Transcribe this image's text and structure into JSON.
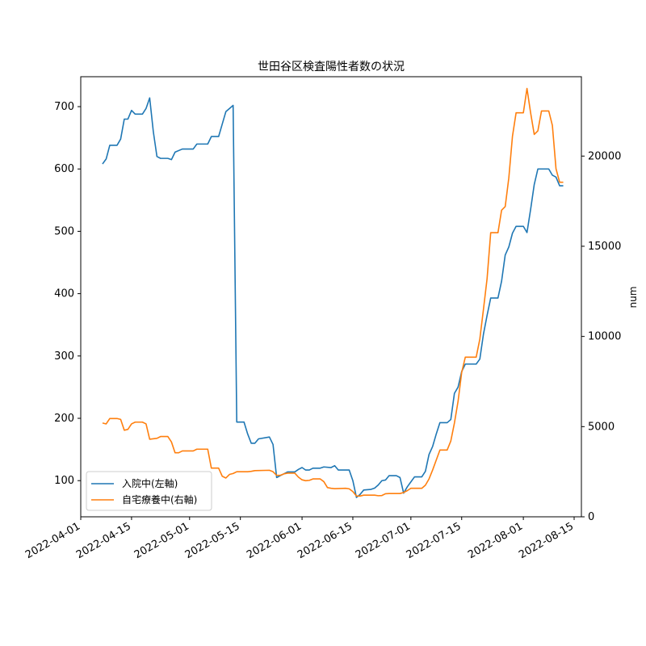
{
  "chart_data": {
    "type": "line",
    "title": "世田谷区検査陽性者数の状況",
    "xlabel": "",
    "ylabel_left": "",
    "ylabel_right": "num",
    "xlim": [
      "2022-04-01",
      "2022-08-17"
    ],
    "ylim_left": [
      42,
      748
    ],
    "ylim_right": [
      0,
      24400
    ],
    "xticks": [
      "2022-04-01",
      "2022-04-15",
      "2022-05-01",
      "2022-05-15",
      "2022-06-01",
      "2022-06-15",
      "2022-07-01",
      "2022-07-15",
      "2022-08-01",
      "2022-08-15"
    ],
    "yticks_left": [
      100,
      200,
      300,
      400,
      500,
      600,
      700
    ],
    "yticks_right": [
      0,
      5000,
      10000,
      15000,
      20000
    ],
    "legend_position": "lower-left",
    "grid": false,
    "series": [
      {
        "name": "入院中(左軸)",
        "axis": "left",
        "color": "#1f77b4",
        "points": [
          [
            "2022-04-07",
            608
          ],
          [
            "2022-04-08",
            616
          ],
          [
            "2022-04-09",
            638
          ],
          [
            "2022-04-11",
            638
          ],
          [
            "2022-04-12",
            648
          ],
          [
            "2022-04-13",
            680
          ],
          [
            "2022-04-14",
            680
          ],
          [
            "2022-04-15",
            694
          ],
          [
            "2022-04-16",
            688
          ],
          [
            "2022-04-18",
            688
          ],
          [
            "2022-04-19",
            697
          ],
          [
            "2022-04-20",
            714
          ],
          [
            "2022-04-21",
            660
          ],
          [
            "2022-04-22",
            620
          ],
          [
            "2022-04-23",
            617
          ],
          [
            "2022-04-25",
            617
          ],
          [
            "2022-04-26",
            615
          ],
          [
            "2022-04-27",
            627
          ],
          [
            "2022-04-29",
            632
          ],
          [
            "2022-05-02",
            632
          ],
          [
            "2022-05-03",
            640
          ],
          [
            "2022-05-06",
            640
          ],
          [
            "2022-05-07",
            652
          ],
          [
            "2022-05-09",
            652
          ],
          [
            "2022-05-10",
            672
          ],
          [
            "2022-05-11",
            692
          ],
          [
            "2022-05-12",
            697
          ],
          [
            "2022-05-13",
            702
          ],
          [
            "2022-05-14",
            194
          ],
          [
            "2022-05-16",
            194
          ],
          [
            "2022-05-17",
            175
          ],
          [
            "2022-05-18",
            160
          ],
          [
            "2022-05-19",
            160
          ],
          [
            "2022-05-20",
            167
          ],
          [
            "2022-05-23",
            170
          ],
          [
            "2022-05-24",
            158
          ],
          [
            "2022-05-25",
            105
          ],
          [
            "2022-05-26",
            108
          ],
          [
            "2022-05-28",
            114
          ],
          [
            "2022-05-30",
            114
          ],
          [
            "2022-05-31",
            118
          ],
          [
            "2022-06-01",
            121
          ],
          [
            "2022-06-02",
            117
          ],
          [
            "2022-06-03",
            117
          ],
          [
            "2022-06-04",
            120
          ],
          [
            "2022-06-06",
            120
          ],
          [
            "2022-06-07",
            122
          ],
          [
            "2022-06-09",
            121
          ],
          [
            "2022-06-10",
            124
          ],
          [
            "2022-06-11",
            117
          ],
          [
            "2022-06-14",
            117
          ],
          [
            "2022-06-15",
            100
          ],
          [
            "2022-06-16",
            73
          ],
          [
            "2022-06-17",
            78
          ],
          [
            "2022-06-18",
            85
          ],
          [
            "2022-06-20",
            86
          ],
          [
            "2022-06-21",
            88
          ],
          [
            "2022-06-22",
            93
          ],
          [
            "2022-06-23",
            100
          ],
          [
            "2022-06-24",
            101
          ],
          [
            "2022-06-25",
            108
          ],
          [
            "2022-06-27",
            108
          ],
          [
            "2022-06-28",
            105
          ],
          [
            "2022-06-29",
            80
          ],
          [
            "2022-06-30",
            90
          ],
          [
            "2022-07-01",
            98
          ],
          [
            "2022-07-02",
            106
          ],
          [
            "2022-07-04",
            106
          ],
          [
            "2022-07-05",
            115
          ],
          [
            "2022-07-06",
            142
          ],
          [
            "2022-07-07",
            155
          ],
          [
            "2022-07-08",
            175
          ],
          [
            "2022-07-09",
            193
          ],
          [
            "2022-07-11",
            193
          ],
          [
            "2022-07-12",
            198
          ],
          [
            "2022-07-13",
            240
          ],
          [
            "2022-07-14",
            250
          ],
          [
            "2022-07-15",
            275
          ],
          [
            "2022-07-16",
            287
          ],
          [
            "2022-07-19",
            287
          ],
          [
            "2022-07-20",
            295
          ],
          [
            "2022-07-21",
            335
          ],
          [
            "2022-07-22",
            365
          ],
          [
            "2022-07-23",
            393
          ],
          [
            "2022-07-25",
            393
          ],
          [
            "2022-07-26",
            420
          ],
          [
            "2022-07-27",
            462
          ],
          [
            "2022-07-28",
            475
          ],
          [
            "2022-07-29",
            497
          ],
          [
            "2022-07-30",
            508
          ],
          [
            "2022-08-01",
            508
          ],
          [
            "2022-08-02",
            498
          ],
          [
            "2022-08-03",
            535
          ],
          [
            "2022-08-04",
            575
          ],
          [
            "2022-08-05",
            600
          ],
          [
            "2022-08-08",
            600
          ],
          [
            "2022-08-09",
            590
          ],
          [
            "2022-08-10",
            587
          ],
          [
            "2022-08-11",
            573
          ],
          [
            "2022-08-12",
            573
          ]
        ]
      },
      {
        "name": "自宅療養中(右軸)",
        "axis": "right",
        "color": "#ff7f0e",
        "points": [
          [
            "2022-04-07",
            5200
          ],
          [
            "2022-04-08",
            5150
          ],
          [
            "2022-04-09",
            5450
          ],
          [
            "2022-04-11",
            5450
          ],
          [
            "2022-04-12",
            5400
          ],
          [
            "2022-04-13",
            4800
          ],
          [
            "2022-04-14",
            4850
          ],
          [
            "2022-04-15",
            5150
          ],
          [
            "2022-04-16",
            5250
          ],
          [
            "2022-04-18",
            5250
          ],
          [
            "2022-04-19",
            5150
          ],
          [
            "2022-04-20",
            4300
          ],
          [
            "2022-04-22",
            4350
          ],
          [
            "2022-04-23",
            4450
          ],
          [
            "2022-04-25",
            4450
          ],
          [
            "2022-04-26",
            4150
          ],
          [
            "2022-04-27",
            3550
          ],
          [
            "2022-04-28",
            3550
          ],
          [
            "2022-04-29",
            3650
          ],
          [
            "2022-05-02",
            3650
          ],
          [
            "2022-05-03",
            3750
          ],
          [
            "2022-05-06",
            3750
          ],
          [
            "2022-05-07",
            2700
          ],
          [
            "2022-05-09",
            2700
          ],
          [
            "2022-05-10",
            2250
          ],
          [
            "2022-05-11",
            2150
          ],
          [
            "2022-05-12",
            2350
          ],
          [
            "2022-05-13",
            2400
          ],
          [
            "2022-05-14",
            2500
          ],
          [
            "2022-05-17",
            2500
          ],
          [
            "2022-05-18",
            2520
          ],
          [
            "2022-05-19",
            2560
          ],
          [
            "2022-05-23",
            2580
          ],
          [
            "2022-05-24",
            2500
          ],
          [
            "2022-05-25",
            2300
          ],
          [
            "2022-05-26",
            2300
          ],
          [
            "2022-05-27",
            2380
          ],
          [
            "2022-05-28",
            2420
          ],
          [
            "2022-05-30",
            2420
          ],
          [
            "2022-05-31",
            2200
          ],
          [
            "2022-06-01",
            2050
          ],
          [
            "2022-06-02",
            2000
          ],
          [
            "2022-06-03",
            2020
          ],
          [
            "2022-06-04",
            2100
          ],
          [
            "2022-06-06",
            2100
          ],
          [
            "2022-06-07",
            1950
          ],
          [
            "2022-06-08",
            1620
          ],
          [
            "2022-06-09",
            1580
          ],
          [
            "2022-06-10",
            1560
          ],
          [
            "2022-06-13",
            1580
          ],
          [
            "2022-06-14",
            1550
          ],
          [
            "2022-06-15",
            1400
          ],
          [
            "2022-06-16",
            1150
          ],
          [
            "2022-06-17",
            1150
          ],
          [
            "2022-06-18",
            1200
          ],
          [
            "2022-06-21",
            1200
          ],
          [
            "2022-06-22",
            1170
          ],
          [
            "2022-06-23",
            1180
          ],
          [
            "2022-06-24",
            1280
          ],
          [
            "2022-06-25",
            1290
          ],
          [
            "2022-06-28",
            1290
          ],
          [
            "2022-06-29",
            1350
          ],
          [
            "2022-06-30",
            1450
          ],
          [
            "2022-07-01",
            1580
          ],
          [
            "2022-07-02",
            1580
          ],
          [
            "2022-07-04",
            1580
          ],
          [
            "2022-07-05",
            1750
          ],
          [
            "2022-07-06",
            2100
          ],
          [
            "2022-07-07",
            2600
          ],
          [
            "2022-07-08",
            3150
          ],
          [
            "2022-07-09",
            3700
          ],
          [
            "2022-07-11",
            3700
          ],
          [
            "2022-07-12",
            4200
          ],
          [
            "2022-07-13",
            5200
          ],
          [
            "2022-07-14",
            6400
          ],
          [
            "2022-07-15",
            8000
          ],
          [
            "2022-07-16",
            8850
          ],
          [
            "2022-07-19",
            8850
          ],
          [
            "2022-07-20",
            9850
          ],
          [
            "2022-07-21",
            11500
          ],
          [
            "2022-07-22",
            13200
          ],
          [
            "2022-07-23",
            15750
          ],
          [
            "2022-07-25",
            15750
          ],
          [
            "2022-07-26",
            17000
          ],
          [
            "2022-07-27",
            17200
          ],
          [
            "2022-07-28",
            18800
          ],
          [
            "2022-07-29",
            21100
          ],
          [
            "2022-07-30",
            22400
          ],
          [
            "2022-08-01",
            22400
          ],
          [
            "2022-08-02",
            23750
          ],
          [
            "2022-08-03",
            22400
          ],
          [
            "2022-08-04",
            21200
          ],
          [
            "2022-08-05",
            21400
          ],
          [
            "2022-08-06",
            22500
          ],
          [
            "2022-08-08",
            22500
          ],
          [
            "2022-08-09",
            21700
          ],
          [
            "2022-08-10",
            19300
          ],
          [
            "2022-08-11",
            18550
          ],
          [
            "2022-08-12",
            18550
          ]
        ]
      }
    ]
  }
}
